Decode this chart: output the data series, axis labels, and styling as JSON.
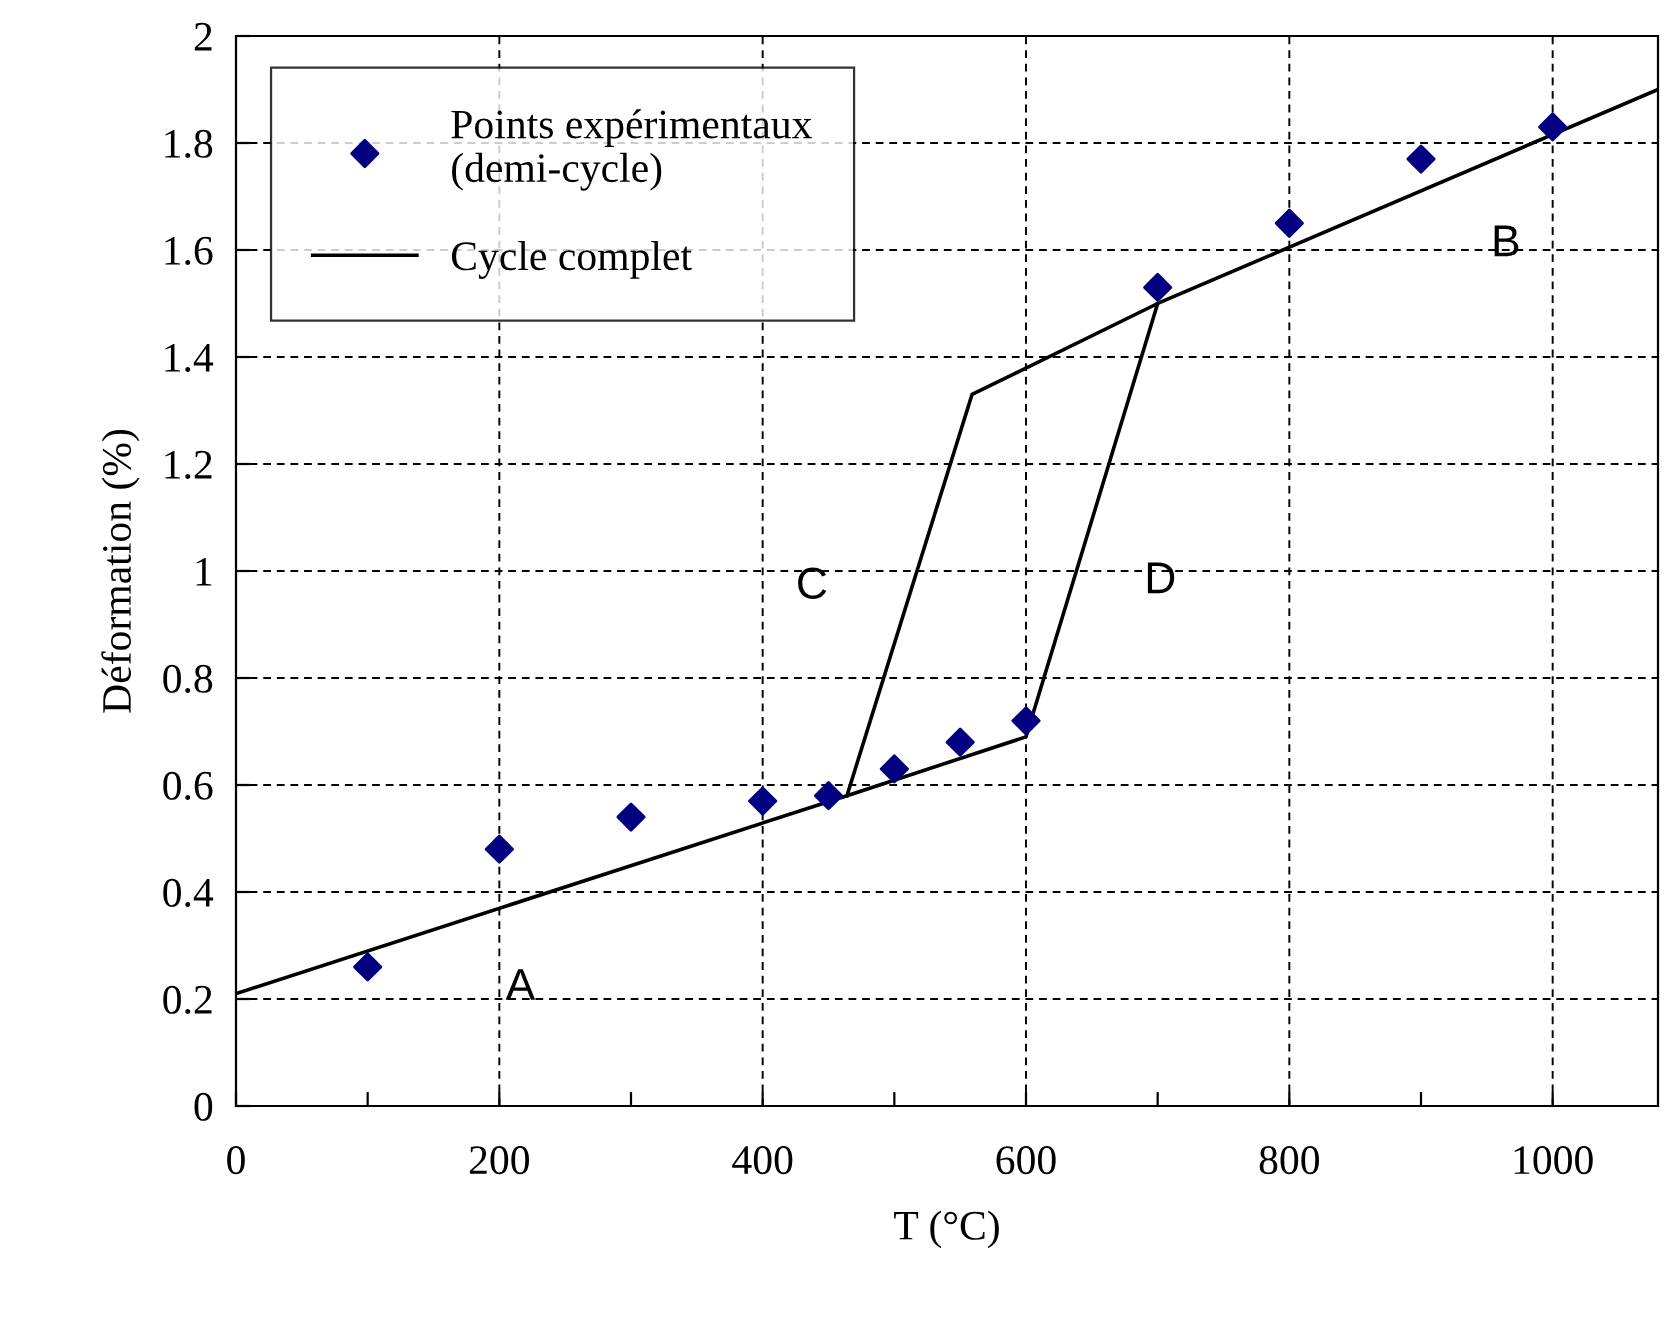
{
  "chart_data": {
    "type": "scatter",
    "xlabel": "T (°C)",
    "ylabel": "Déformation (%)",
    "xlim": [
      0,
      1080
    ],
    "ylim": [
      0,
      2
    ],
    "xticks": [
      0,
      {
        "value": 100,
        "label": null
      },
      200,
      {
        "value": 300,
        "label": null
      },
      400,
      {
        "value": 500,
        "label": null
      },
      600,
      {
        "value": 700,
        "label": null
      },
      800,
      {
        "value": 900,
        "label": null
      },
      1000
    ],
    "yticks": [
      0,
      0.2,
      0.4,
      0.6,
      0.8,
      1,
      1.2,
      1.4,
      1.6,
      1.8,
      2
    ],
    "grid": true,
    "legend": "top left",
    "series": [
      {
        "name": "Points expérimentaux\n(demi-cycle)",
        "marker": "diamond",
        "color": "#000080",
        "x": [
          100,
          200,
          300,
          400,
          450,
          500,
          550,
          600,
          700,
          800,
          900,
          1000
        ],
        "values": [
          0.26,
          0.48,
          0.54,
          0.57,
          0.58,
          0.63,
          0.68,
          0.72,
          1.53,
          1.65,
          1.77,
          1.83
        ]
      },
      {
        "name": "Cycle complet",
        "type": "line",
        "marker": "none",
        "line_style": "solid",
        "color": "#000000",
        "x": [
          0,
          464,
          600,
          700,
          559,
          464,
          null,
          700,
          1080
        ],
        "values": [
          0.21,
          0.58,
          0.69,
          1.5,
          1.33,
          0.58,
          null,
          1.5,
          1.9
        ]
      }
    ],
    "annotations": [
      "A",
      "B",
      "C",
      "D"
    ]
  }
}
